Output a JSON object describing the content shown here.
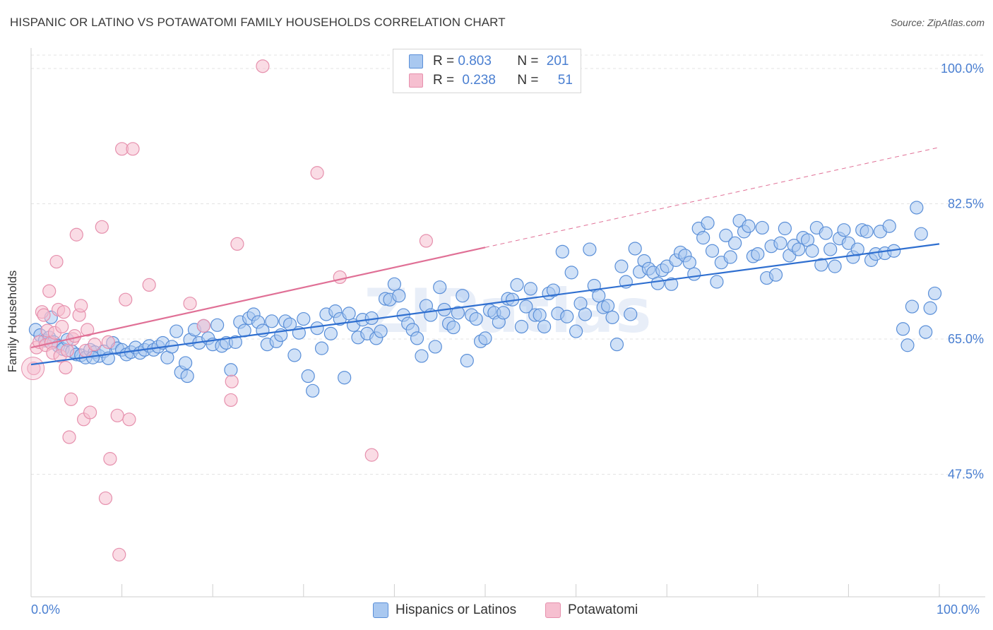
{
  "header": {
    "title": "HISPANIC OR LATINO VS POTAWATOMI FAMILY HOUSEHOLDS CORRELATION CHART",
    "source": "Source: ZipAtlas.com"
  },
  "legend_top": {
    "rows": [
      {
        "r_label": "R =",
        "r_value": "0.803",
        "n_label": "N =",
        "n_value": "201"
      },
      {
        "r_label": "R =",
        "r_value": "0.238",
        "n_label": "N =",
        "n_value": "51"
      }
    ]
  },
  "legend_bottom": {
    "items": [
      {
        "label": "Hispanics or Latinos"
      },
      {
        "label": "Potawatomi"
      }
    ]
  },
  "axes": {
    "ylabel": "Family Households",
    "x_left_label": "0.0%",
    "x_right_label": "100.0%",
    "y_tick_labels": [
      "100.0%",
      "82.5%",
      "65.0%",
      "47.5%"
    ]
  },
  "watermark": "ZIPatlas",
  "colors": {
    "blue_fill": "#a9c8f0",
    "blue_stroke": "#5a8fd8",
    "blue_line": "#2f6fd0",
    "pink_fill": "#f6bfd0",
    "pink_stroke": "#e690ad",
    "pink_line": "#e07096",
    "tick_label": "#4a7fd1",
    "grid": "#e3e3e3"
  },
  "chart_data": {
    "type": "scatter",
    "xlabel": "",
    "ylabel": "Family Households",
    "xlim": [
      0,
      100
    ],
    "ylim": [
      30,
      102
    ],
    "y_ticks": [
      100.0,
      82.5,
      65.0,
      47.5
    ],
    "grid": true,
    "legend_position": "top-center",
    "series": [
      {
        "name": "Hispanics or Latinos",
        "r": 0.803,
        "n": 201,
        "trend": {
          "x0": 0,
          "y0": 61.7,
          "x1": 100,
          "y1": 77.3,
          "x_solid_end": 100
        },
        "points": [
          [
            0.5,
            66.2
          ],
          [
            1,
            65.5
          ],
          [
            1.5,
            64.8
          ],
          [
            2,
            65.2
          ],
          [
            2.5,
            64.6
          ],
          [
            3,
            64.1
          ],
          [
            3.5,
            63.7
          ],
          [
            4,
            64.9
          ],
          [
            4.5,
            63.4
          ],
          [
            5,
            63.0
          ],
          [
            5.5,
            62.9
          ],
          [
            6,
            62.6
          ],
          [
            6.5,
            63.6
          ],
          [
            7,
            63.3
          ],
          [
            7.5,
            62.8
          ],
          [
            8,
            63.4
          ],
          [
            8.5,
            62.5
          ],
          [
            9,
            64.5
          ],
          [
            9.5,
            63.8
          ],
          [
            10,
            63.6
          ],
          [
            10.5,
            63.0
          ],
          [
            11,
            63.3
          ],
          [
            11.5,
            63.9
          ],
          [
            12,
            63.2
          ],
          [
            12.5,
            63.6
          ],
          [
            13,
            64.1
          ],
          [
            13.5,
            63.6
          ],
          [
            14,
            64.0
          ],
          [
            14.5,
            64.5
          ],
          [
            15,
            62.6
          ],
          [
            15.5,
            64.0
          ],
          [
            16,
            66.0
          ],
          [
            16.5,
            60.7
          ],
          [
            17,
            61.9
          ],
          [
            17.5,
            64.9
          ],
          [
            18,
            66.2
          ],
          [
            18.5,
            64.5
          ],
          [
            19,
            66.7
          ],
          [
            19.5,
            65.1
          ],
          [
            20,
            64.3
          ],
          [
            20.5,
            66.8
          ],
          [
            21,
            64.1
          ],
          [
            21.5,
            64.5
          ],
          [
            22,
            61.0
          ],
          [
            22.5,
            64.6
          ],
          [
            23,
            67.2
          ],
          [
            23.5,
            66.1
          ],
          [
            24,
            67.7
          ],
          [
            24.5,
            68.2
          ],
          [
            25,
            67.2
          ],
          [
            25.5,
            66.1
          ],
          [
            26,
            64.3
          ],
          [
            26.5,
            67.3
          ],
          [
            27,
            64.7
          ],
          [
            27.5,
            65.5
          ],
          [
            28,
            67.3
          ],
          [
            28.5,
            66.9
          ],
          [
            29,
            62.9
          ],
          [
            29.5,
            65.8
          ],
          [
            30,
            67.6
          ],
          [
            30.5,
            60.2
          ],
          [
            31,
            58.3
          ],
          [
            31.5,
            66.4
          ],
          [
            32,
            63.8
          ],
          [
            32.5,
            68.2
          ],
          [
            33,
            65.7
          ],
          [
            33.5,
            68.6
          ],
          [
            34,
            67.6
          ],
          [
            34.5,
            60.0
          ],
          [
            35,
            68.3
          ],
          [
            35.5,
            66.8
          ],
          [
            36,
            65.2
          ],
          [
            36.5,
            67.5
          ],
          [
            37,
            65.7
          ],
          [
            37.5,
            67.7
          ],
          [
            38,
            65.1
          ],
          [
            38.5,
            66.0
          ],
          [
            39,
            70.2
          ],
          [
            39.5,
            70.1
          ],
          [
            40,
            72.1
          ],
          [
            40.5,
            70.6
          ],
          [
            41,
            68.1
          ],
          [
            41.5,
            67.0
          ],
          [
            42,
            66.2
          ],
          [
            42.5,
            65.1
          ],
          [
            43,
            62.8
          ],
          [
            43.5,
            69.3
          ],
          [
            44,
            68.1
          ],
          [
            44.5,
            64.0
          ],
          [
            45,
            71.7
          ],
          [
            45.5,
            68.8
          ],
          [
            46,
            67.0
          ],
          [
            46.5,
            66.5
          ],
          [
            47,
            68.4
          ],
          [
            47.5,
            70.6
          ],
          [
            48,
            62.2
          ],
          [
            48.5,
            68.1
          ],
          [
            49,
            67.6
          ],
          [
            49.5,
            64.7
          ],
          [
            50,
            65.1
          ],
          [
            50.5,
            68.7
          ],
          [
            51,
            68.4
          ],
          [
            51.5,
            67.2
          ],
          [
            52,
            68.4
          ],
          [
            52.5,
            70.2
          ],
          [
            53,
            70.1
          ],
          [
            53.5,
            72.0
          ],
          [
            54,
            66.6
          ],
          [
            54.5,
            69.2
          ],
          [
            55,
            71.5
          ],
          [
            55.5,
            68.1
          ],
          [
            56,
            68.1
          ],
          [
            56.5,
            66.6
          ],
          [
            57,
            70.9
          ],
          [
            57.5,
            71.3
          ],
          [
            58,
            68.3
          ],
          [
            58.5,
            76.3
          ],
          [
            59,
            67.9
          ],
          [
            59.5,
            73.6
          ],
          [
            60,
            66.0
          ],
          [
            60.5,
            69.6
          ],
          [
            61,
            68.2
          ],
          [
            61.5,
            76.6
          ],
          [
            62,
            71.9
          ],
          [
            62.5,
            70.6
          ],
          [
            63,
            69.1
          ],
          [
            63.5,
            69.3
          ],
          [
            64,
            67.8
          ],
          [
            64.5,
            64.3
          ],
          [
            65,
            74.4
          ],
          [
            65.5,
            72.4
          ],
          [
            66,
            68.2
          ],
          [
            66.5,
            76.7
          ],
          [
            67,
            73.7
          ],
          [
            67.5,
            75.1
          ],
          [
            68,
            74.1
          ],
          [
            68.5,
            73.6
          ],
          [
            69,
            72.2
          ],
          [
            69.5,
            73.9
          ],
          [
            70,
            74.4
          ],
          [
            70.5,
            72.1
          ],
          [
            71,
            75.2
          ],
          [
            71.5,
            76.2
          ],
          [
            72,
            75.8
          ],
          [
            72.5,
            74.9
          ],
          [
            73,
            73.4
          ],
          [
            73.5,
            79.3
          ],
          [
            74,
            78.1
          ],
          [
            74.5,
            80.0
          ],
          [
            75,
            76.4
          ],
          [
            75.5,
            72.4
          ],
          [
            76,
            74.9
          ],
          [
            76.5,
            78.4
          ],
          [
            77,
            75.6
          ],
          [
            77.5,
            77.4
          ],
          [
            78,
            80.3
          ],
          [
            78.5,
            78.9
          ],
          [
            79,
            79.6
          ],
          [
            79.5,
            75.7
          ],
          [
            80,
            76.0
          ],
          [
            80.5,
            79.4
          ],
          [
            81,
            72.9
          ],
          [
            81.5,
            77.0
          ],
          [
            82,
            73.3
          ],
          [
            82.5,
            77.4
          ],
          [
            83,
            79.3
          ],
          [
            83.5,
            75.8
          ],
          [
            84,
            77.1
          ],
          [
            84.5,
            76.6
          ],
          [
            85,
            78.1
          ],
          [
            85.5,
            77.8
          ],
          [
            86,
            76.4
          ],
          [
            86.5,
            79.4
          ],
          [
            87,
            74.6
          ],
          [
            87.5,
            78.7
          ],
          [
            88,
            76.6
          ],
          [
            88.5,
            74.4
          ],
          [
            89,
            78.0
          ],
          [
            89.5,
            79.1
          ],
          [
            90,
            77.4
          ],
          [
            90.5,
            75.6
          ],
          [
            91,
            76.6
          ],
          [
            91.5,
            79.1
          ],
          [
            92,
            78.9
          ],
          [
            92.5,
            75.2
          ],
          [
            93,
            76.0
          ],
          [
            93.5,
            78.9
          ],
          [
            94,
            76.1
          ],
          [
            94.5,
            79.6
          ],
          [
            95,
            76.4
          ],
          [
            96,
            66.3
          ],
          [
            96.5,
            64.2
          ],
          [
            97,
            69.2
          ],
          [
            97.5,
            82.0
          ],
          [
            98,
            78.6
          ],
          [
            98.5,
            65.9
          ],
          [
            99,
            69.0
          ],
          [
            99.5,
            70.9
          ],
          [
            2.2,
            67.8
          ],
          [
            17.2,
            60.2
          ],
          [
            6.8,
            62.6
          ]
        ]
      },
      {
        "name": "Potawatomi",
        "r": 0.238,
        "n": 51,
        "trend": {
          "x0": 0,
          "y0": 63.9,
          "x1": 100,
          "y1": 89.8,
          "x_solid_end": 50
        },
        "points": [
          [
            0.3,
            61.2
          ],
          [
            0.6,
            63.9
          ],
          [
            0.9,
            64.6
          ],
          [
            1.2,
            68.5
          ],
          [
            1.4,
            68.1
          ],
          [
            1.6,
            64.2
          ],
          [
            1.8,
            66.1
          ],
          [
            2.0,
            71.2
          ],
          [
            2.2,
            64.5
          ],
          [
            2.4,
            63.2
          ],
          [
            2.6,
            65.8
          ],
          [
            2.8,
            75.0
          ],
          [
            3.0,
            68.8
          ],
          [
            3.2,
            62.8
          ],
          [
            3.4,
            66.6
          ],
          [
            3.6,
            68.5
          ],
          [
            3.8,
            61.3
          ],
          [
            4.0,
            63.5
          ],
          [
            4.2,
            52.3
          ],
          [
            4.4,
            57.2
          ],
          [
            4.6,
            65.0
          ],
          [
            4.8,
            65.4
          ],
          [
            5.0,
            78.5
          ],
          [
            5.3,
            68.1
          ],
          [
            5.5,
            69.3
          ],
          [
            5.8,
            54.6
          ],
          [
            6.0,
            63.5
          ],
          [
            6.2,
            66.2
          ],
          [
            6.5,
            55.5
          ],
          [
            7.0,
            64.3
          ],
          [
            7.8,
            79.5
          ],
          [
            8.2,
            44.4
          ],
          [
            8.5,
            64.6
          ],
          [
            8.7,
            49.5
          ],
          [
            9.5,
            55.1
          ],
          [
            9.7,
            37.1
          ],
          [
            10.0,
            89.6
          ],
          [
            10.4,
            70.1
          ],
          [
            10.8,
            54.6
          ],
          [
            11.2,
            89.6
          ],
          [
            13.0,
            72.0
          ],
          [
            17.5,
            69.6
          ],
          [
            19.0,
            66.7
          ],
          [
            22.0,
            57.1
          ],
          [
            22.1,
            59.5
          ],
          [
            22.7,
            77.3
          ],
          [
            25.5,
            100.3
          ],
          [
            31.5,
            86.5
          ],
          [
            34.0,
            73.0
          ],
          [
            37.5,
            50.0
          ],
          [
            43.5,
            77.7
          ]
        ]
      }
    ]
  }
}
